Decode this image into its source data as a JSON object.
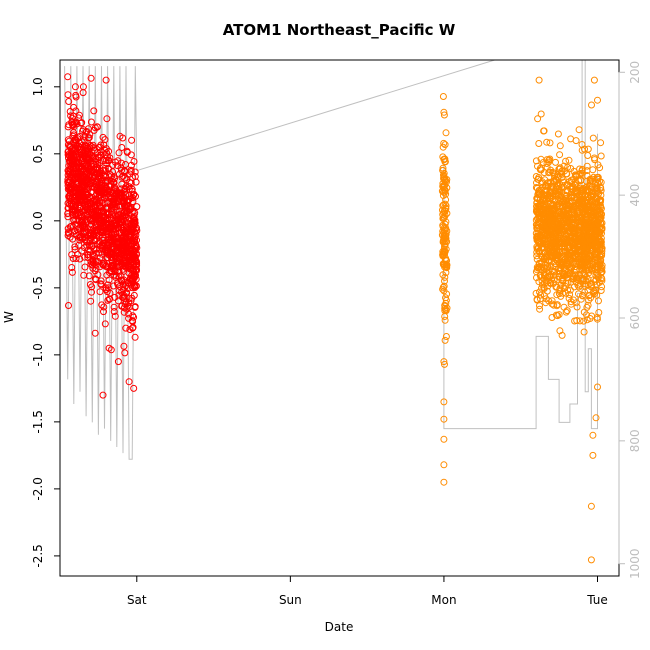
{
  "chart_data": {
    "type": "scatter",
    "title": "ATOM1 Northeast_Pacific W",
    "xlabel": "Date",
    "ylabel": "W",
    "x_ticks": [
      "Sat",
      "Sun",
      "Mon",
      "Tue"
    ],
    "xlim_days": [
      -0.5,
      3.14
    ],
    "ylim": [
      -2.65,
      1.2
    ],
    "y_ticks": [
      "-2.5",
      "-2.0",
      "-1.5",
      "-1.0",
      "-0.5",
      "0.0",
      "0.5",
      "1.0"
    ],
    "y2_ticks": [
      "200",
      "400",
      "600",
      "800",
      "1000"
    ],
    "y2_lim": [
      1020,
      180
    ],
    "y2_reversed": true,
    "grid": false,
    "point_shape": "open-circle",
    "series": [
      {
        "color": "#ff0000",
        "segments": [
          {
            "x0": -0.45,
            "x1": 0.0,
            "mean_start": 0.35,
            "mean_end": -0.25,
            "spread": 0.28,
            "count": 1400
          }
        ],
        "outliers": [
          {
            "x": -0.4,
            "y": 1.0
          },
          {
            "x": -0.2,
            "y": 1.05
          },
          {
            "x": -0.28,
            "y": 0.82
          },
          {
            "x": -0.22,
            "y": -1.3
          },
          {
            "x": -0.12,
            "y": -1.05
          },
          {
            "x": -0.05,
            "y": -1.2
          },
          {
            "x": -0.02,
            "y": -1.25
          },
          {
            "x": -0.18,
            "y": -0.95
          },
          {
            "x": -0.3,
            "y": -0.6
          }
        ]
      },
      {
        "color": "#ff8c00",
        "segments": [
          {
            "x0": 1.99,
            "x1": 2.02,
            "mean_start": 0.1,
            "mean_end": -0.3,
            "spread": 0.35,
            "count": 140
          },
          {
            "x0": 2.6,
            "x1": 3.03,
            "mean_start": -0.05,
            "mean_end": -0.1,
            "spread": 0.25,
            "count": 1500
          }
        ],
        "outliers": [
          {
            "x": 2.0,
            "y": -1.95
          },
          {
            "x": 2.0,
            "y": -1.82
          },
          {
            "x": 2.0,
            "y": -1.63
          },
          {
            "x": 2.0,
            "y": -1.48
          },
          {
            "x": 2.0,
            "y": -1.05
          },
          {
            "x": 2.62,
            "y": 1.05
          },
          {
            "x": 2.98,
            "y": 1.05
          },
          {
            "x": 3.0,
            "y": 0.9
          },
          {
            "x": 2.96,
            "y": -2.53
          },
          {
            "x": 2.96,
            "y": -2.13
          },
          {
            "x": 2.97,
            "y": -1.75
          },
          {
            "x": 2.97,
            "y": -1.6
          },
          {
            "x": 2.99,
            "y": -1.47
          },
          {
            "x": 3.0,
            "y": -1.24
          },
          {
            "x": 2.88,
            "y": 0.68
          },
          {
            "x": 2.75,
            "y": -0.7
          }
        ]
      }
    ],
    "depth_series": {
      "color": "#c0c0c0",
      "axis": "right",
      "points": [
        [
          -0.47,
          190
        ],
        [
          -0.45,
          700
        ],
        [
          -0.43,
          190
        ],
        [
          -0.41,
          740
        ],
        [
          -0.39,
          190
        ],
        [
          -0.37,
          720
        ],
        [
          -0.35,
          190
        ],
        [
          -0.33,
          760
        ],
        [
          -0.31,
          190
        ],
        [
          -0.29,
          770
        ],
        [
          -0.27,
          190
        ],
        [
          -0.25,
          790
        ],
        [
          -0.23,
          190
        ],
        [
          -0.21,
          780
        ],
        [
          -0.19,
          190
        ],
        [
          -0.17,
          800
        ],
        [
          -0.15,
          190
        ],
        [
          -0.13,
          810
        ],
        [
          -0.11,
          190
        ],
        [
          -0.09,
          820
        ],
        [
          -0.07,
          190
        ],
        [
          -0.05,
          830
        ],
        [
          -0.03,
          830
        ],
        [
          -0.01,
          190
        ],
        [
          0.0,
          360
        ],
        [
          2.33,
          180
        ]
      ],
      "points_b": [
        [
          2.0,
          340
        ],
        [
          2.0,
          780
        ],
        [
          2.6,
          780
        ],
        [
          2.6,
          630
        ],
        [
          2.68,
          630
        ],
        [
          2.68,
          700
        ],
        [
          2.75,
          700
        ],
        [
          2.75,
          770
        ],
        [
          2.82,
          770
        ],
        [
          2.82,
          740
        ],
        [
          2.87,
          740
        ],
        [
          2.87,
          560
        ],
        [
          2.9,
          560
        ],
        [
          2.9,
          180
        ],
        [
          2.92,
          180
        ],
        [
          2.92,
          720
        ],
        [
          2.94,
          720
        ],
        [
          2.94,
          650
        ],
        [
          2.96,
          650
        ],
        [
          2.96,
          780
        ],
        [
          3.0,
          780
        ],
        [
          3.0,
          300
        ]
      ]
    }
  }
}
